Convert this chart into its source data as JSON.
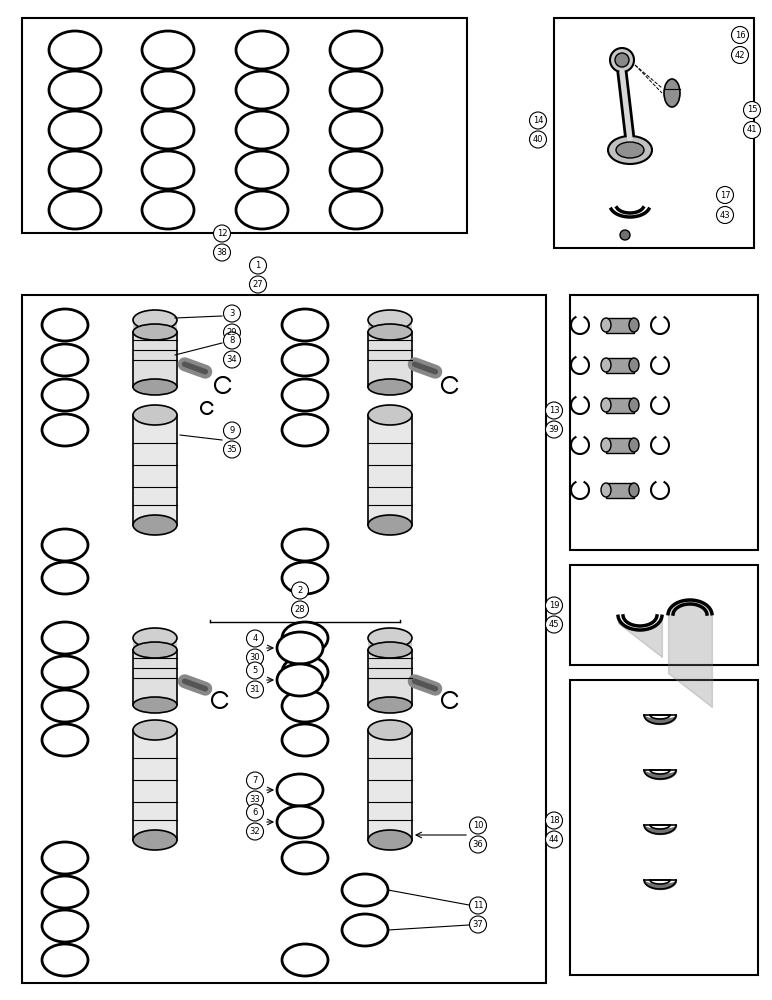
{
  "bg_color": "#ffffff",
  "fig_width": 7.72,
  "fig_height": 10.0,
  "dpi": 100
}
